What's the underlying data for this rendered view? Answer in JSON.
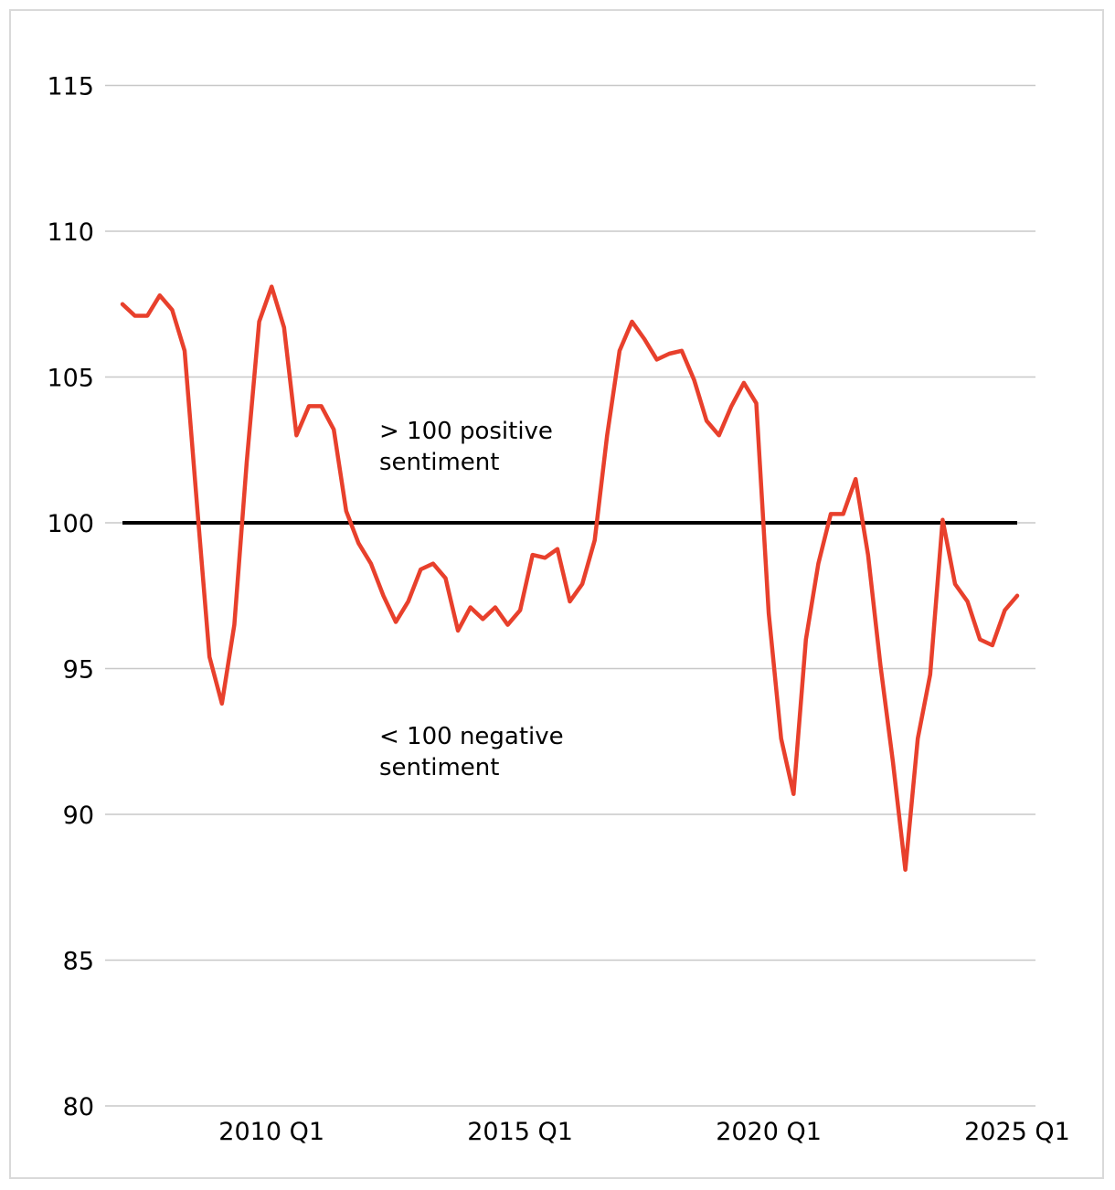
{
  "chart_data": {
    "type": "line",
    "title": "",
    "xlabel": "",
    "ylabel": "",
    "ylim": [
      80,
      115
    ],
    "y_ticks": [
      "80",
      "85",
      "90",
      "95",
      "100",
      "105",
      "110",
      "115"
    ],
    "x_ticks": [
      {
        "label": "2010 Q1",
        "period": "2010 Q1"
      },
      {
        "label": "2015 Q1",
        "period": "2015 Q1"
      },
      {
        "label": "2020 Q1",
        "period": "2020 Q1"
      },
      {
        "label": "2025 Q1",
        "period": "2025 Q1"
      }
    ],
    "grid": true,
    "reference_line": {
      "value": 100,
      "color": "#000000"
    },
    "annotations": [
      {
        "lines": [
          "> 100 positive",
          "sentiment"
        ]
      },
      {
        "lines": [
          "< 100 negative",
          "sentiment"
        ]
      }
    ],
    "series": [
      {
        "color": "#e8402c",
        "x": [
          "2007 Q1",
          "2007 Q2",
          "2007 Q3",
          "2007 Q4",
          "2008 Q1",
          "2008 Q2",
          "2008 Q3",
          "2008 Q4",
          "2009 Q1",
          "2009 Q2",
          "2009 Q3",
          "2009 Q4",
          "2010 Q1",
          "2010 Q2",
          "2010 Q3",
          "2010 Q4",
          "2011 Q1",
          "2011 Q2",
          "2011 Q3",
          "2011 Q4",
          "2012 Q1",
          "2012 Q2",
          "2012 Q3",
          "2012 Q4",
          "2013 Q1",
          "2013 Q2",
          "2013 Q3",
          "2013 Q4",
          "2014 Q1",
          "2014 Q2",
          "2014 Q3",
          "2014 Q4",
          "2015 Q1",
          "2015 Q2",
          "2015 Q3",
          "2015 Q4",
          "2016 Q1",
          "2016 Q2",
          "2016 Q3",
          "2016 Q4",
          "2017 Q1",
          "2017 Q2",
          "2017 Q3",
          "2017 Q4",
          "2018 Q1",
          "2018 Q2",
          "2018 Q3",
          "2018 Q4",
          "2019 Q1",
          "2019 Q2",
          "2019 Q3",
          "2019 Q4",
          "2020 Q1",
          "2020 Q2",
          "2020 Q3",
          "2020 Q4",
          "2021 Q1",
          "2021 Q2",
          "2021 Q3",
          "2021 Q4",
          "2022 Q1",
          "2022 Q2",
          "2022 Q3",
          "2022 Q4",
          "2023 Q1",
          "2023 Q2",
          "2023 Q3",
          "2023 Q4",
          "2024 Q1",
          "2024 Q2",
          "2024 Q3",
          "2024 Q4",
          "2025 Q1"
        ],
        "values": [
          107.5,
          107.1,
          107.1,
          107.8,
          107.3,
          105.9,
          100.6,
          95.4,
          93.8,
          96.5,
          102.1,
          106.9,
          108.1,
          106.7,
          103.0,
          104.0,
          104.0,
          103.2,
          100.4,
          99.3,
          98.6,
          97.5,
          96.6,
          97.3,
          98.4,
          98.6,
          98.1,
          96.3,
          97.1,
          96.7,
          97.1,
          96.5,
          97.0,
          98.9,
          98.8,
          99.1,
          97.3,
          97.9,
          99.4,
          103.0,
          105.9,
          106.9,
          106.3,
          105.6,
          105.8,
          105.9,
          104.9,
          103.5,
          103.0,
          104.0,
          104.8,
          104.1,
          96.9,
          92.6,
          90.7,
          96.0,
          98.6,
          100.3,
          100.3,
          101.5,
          98.9,
          95.1,
          91.8,
          88.1,
          92.6,
          94.8,
          100.1,
          97.9,
          97.3,
          96.0,
          95.8,
          97.0,
          97.5
        ]
      }
    ]
  }
}
